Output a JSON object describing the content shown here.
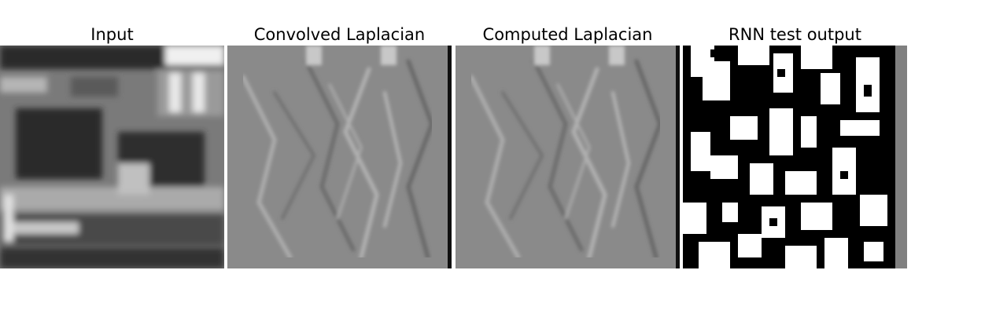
{
  "panels": [
    {
      "title": "Input"
    },
    {
      "title": "Convolved Laplacian"
    },
    {
      "title": "Computed Laplacian"
    },
    {
      "title": "RNN test output"
    }
  ],
  "colors": {
    "background": "#ffffff",
    "laplacian_gray": "#8a8a8a",
    "binary_white": "#ffffff",
    "binary_black": "#000000",
    "padding_gray": "#808080"
  }
}
